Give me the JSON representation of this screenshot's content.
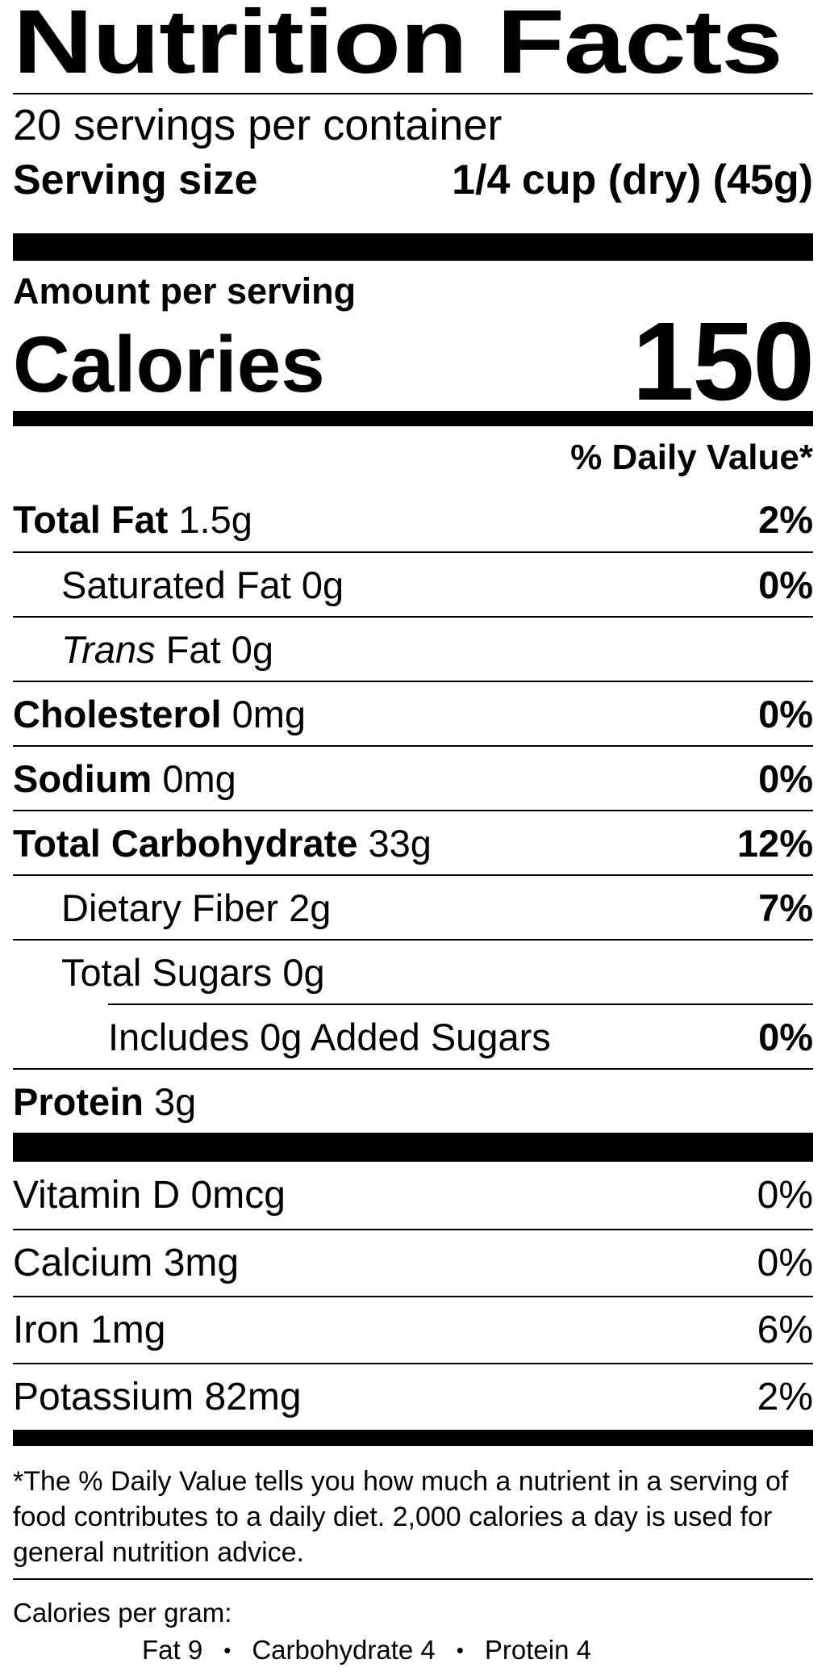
{
  "title": "Nutrition Facts",
  "servings": "20 servings per container",
  "serving_size": {
    "label": "Serving size",
    "value": "1/4 cup (dry) (45g)"
  },
  "amount_per_serving": "Amount per serving",
  "calories": {
    "label": "Calories",
    "value": "150"
  },
  "dv_header": "% Daily Value*",
  "nutrients": [
    {
      "name": "Total Fat",
      "amount": "1.5g",
      "dv": "2%",
      "sub": [
        {
          "name": "Saturated Fat",
          "amount": "0g",
          "dv": "0%"
        },
        {
          "prefix": "Trans",
          "name": "Fat",
          "amount": "0g"
        }
      ]
    },
    {
      "name": "Cholesterol",
      "amount": "0mg",
      "dv": "0%"
    },
    {
      "name": "Sodium",
      "amount": "0mg",
      "dv": "0%"
    },
    {
      "name": "Total Carbohydrate",
      "amount": "33g",
      "dv": "12%",
      "sub": [
        {
          "name": "Dietary Fiber",
          "amount": "2g",
          "dv": "7%"
        },
        {
          "name": "Total Sugars",
          "amount": "0g",
          "sub": [
            {
              "name": "Includes 0g Added Sugars",
              "dv": "0%"
            }
          ]
        }
      ]
    },
    {
      "name": "Protein",
      "amount": "3g"
    }
  ],
  "vitamins": [
    {
      "name": "Vitamin D",
      "amount": "0mcg",
      "dv": "0%"
    },
    {
      "name": "Calcium",
      "amount": "3mg",
      "dv": "0%"
    },
    {
      "name": "Iron",
      "amount": "1mg",
      "dv": "6%"
    },
    {
      "name": "Potassium",
      "amount": "82mg",
      "dv": "2%"
    }
  ],
  "footnote": "*The % Daily Value tells you how much a nutrient in a serving of food contributes to a daily diet. 2,000 calories a day is used for general nutrition advice.",
  "calories_per_gram": {
    "label": "Calories per gram:",
    "items": [
      "Fat 9",
      "Carbohydrate 4",
      "Protein 4"
    ]
  }
}
